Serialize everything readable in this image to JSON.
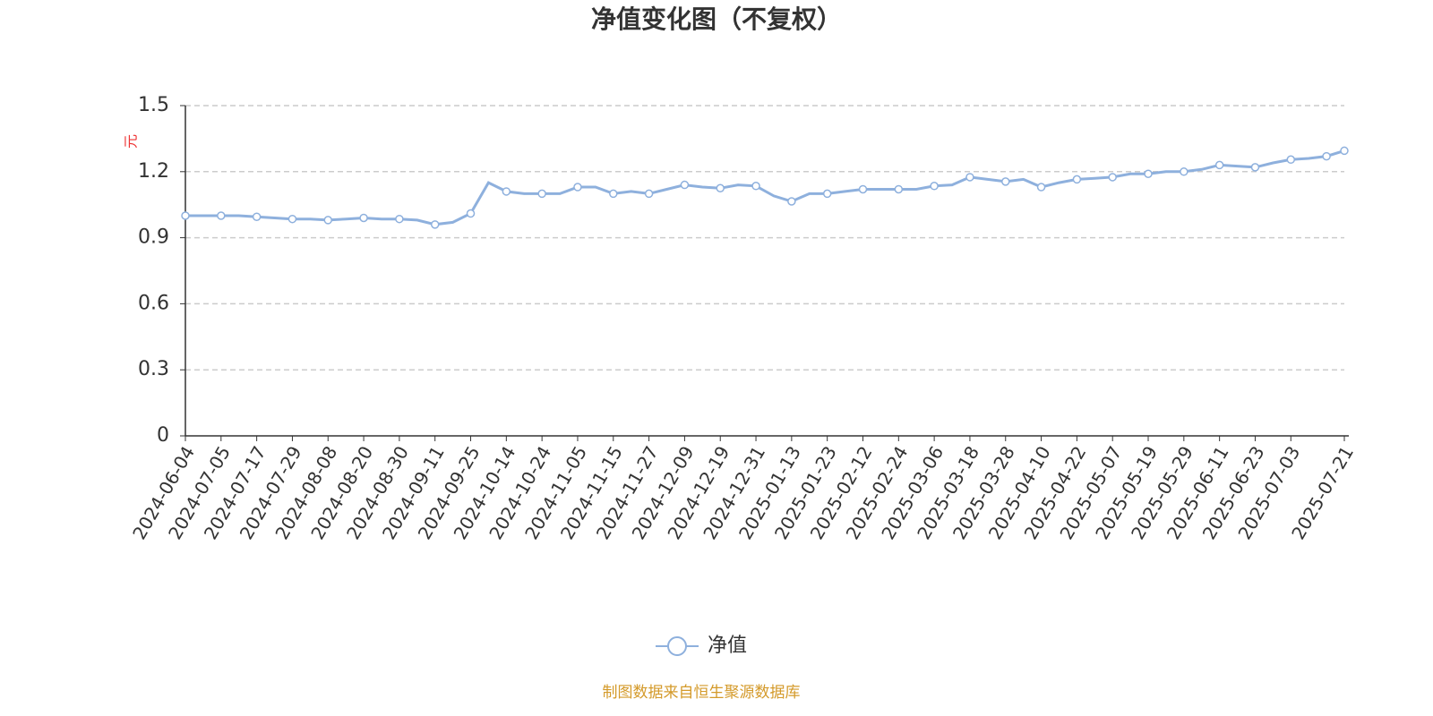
{
  "chart_data": {
    "type": "line",
    "title": "净值变化图（不复权）",
    "y_label": "元",
    "source": "制图数据来自恒生聚源数据库",
    "categories": [
      "2024-06-04",
      null,
      "2024-07-05",
      null,
      "2024-07-17",
      null,
      "2024-07-29",
      null,
      "2024-08-08",
      null,
      "2024-08-20",
      null,
      "2024-08-30",
      null,
      "2024-09-11",
      null,
      "2024-09-25",
      null,
      "2024-10-14",
      null,
      "2024-10-24",
      null,
      "2024-11-05",
      null,
      "2024-11-15",
      null,
      "2024-11-27",
      null,
      "2024-12-09",
      null,
      "2024-12-19",
      null,
      "2024-12-31",
      null,
      "2025-01-13",
      null,
      "2025-01-23",
      null,
      "2025-02-12",
      null,
      "2025-02-24",
      null,
      "2025-03-06",
      null,
      "2025-03-18",
      null,
      "2025-03-28",
      null,
      "2025-04-10",
      null,
      "2025-04-22",
      null,
      "2025-05-07",
      null,
      "2025-05-19",
      null,
      "2025-05-29",
      null,
      "2025-06-11",
      null,
      "2025-06-23",
      null,
      "2025-07-03",
      null,
      null,
      "2025-07-21"
    ],
    "series": [
      {
        "name": "净值",
        "color": "#8eb0dd",
        "values": [
          1.0,
          1.0,
          1.0,
          1.0,
          0.995,
          0.99,
          0.985,
          0.985,
          0.98,
          0.985,
          0.99,
          0.985,
          0.985,
          0.98,
          0.96,
          0.97,
          1.01,
          1.15,
          1.11,
          1.1,
          1.1,
          1.1,
          1.13,
          1.13,
          1.1,
          1.11,
          1.1,
          1.12,
          1.14,
          1.13,
          1.125,
          1.14,
          1.135,
          1.09,
          1.065,
          1.1,
          1.1,
          1.11,
          1.12,
          1.12,
          1.12,
          1.12,
          1.135,
          1.14,
          1.175,
          1.165,
          1.155,
          1.165,
          1.13,
          1.15,
          1.165,
          1.17,
          1.175,
          1.19,
          1.19,
          1.2,
          1.2,
          1.21,
          1.23,
          1.225,
          1.22,
          1.24,
          1.255,
          1.26,
          1.27,
          1.295
        ]
      }
    ],
    "ylim": [
      0,
      1.5
    ],
    "yticks": [
      0,
      0.3,
      0.6,
      0.9,
      1.2,
      1.5
    ],
    "grid": true
  }
}
